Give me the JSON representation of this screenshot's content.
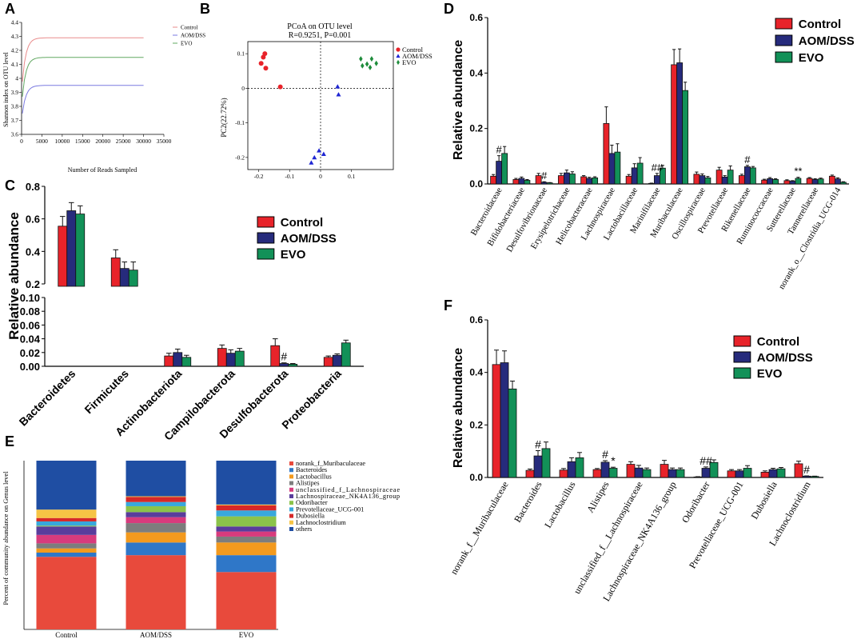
{
  "colors": {
    "control": "#e8232a",
    "aom": "#262b7c",
    "evo": "#129158",
    "bar_edge": "#111111"
  },
  "chart_data": [
    {
      "panel": "A",
      "type": "line",
      "title": "",
      "xlabel": "Number of Reads Sampled",
      "ylabel": "Shannon index on OTU level",
      "xlim": [
        0,
        35000
      ],
      "ylim": [
        3.6,
        4.4
      ],
      "x_ticks": [
        "0",
        "5000",
        "10000",
        "15000",
        "20000",
        "25000",
        "30000",
        "35000"
      ],
      "y_ticks": [
        "3.6",
        "3.7",
        "3.8",
        "3.9",
        "4",
        "4.1",
        "4.2",
        "4.3",
        "4.4"
      ],
      "legend": [
        "Control",
        "AOM/DSS",
        "EVO"
      ],
      "series": [
        {
          "name": "Control",
          "color": "#e98b8b",
          "plateau": 4.29,
          "start": 3.9
        },
        {
          "name": "AOM/DSS",
          "color": "#7a7ae0",
          "plateau": 3.95,
          "start": 3.7
        },
        {
          "name": "EVO",
          "color": "#62a862",
          "plateau": 4.15,
          "start": 3.8
        }
      ]
    },
    {
      "panel": "B",
      "type": "scatter",
      "title": "PCoA on OTU level",
      "subtitle": "R=0.9251, P=0.001",
      "xlabel": "",
      "ylabel": "PC2(22.72%)",
      "xlim": [
        -0.235,
        0.235
      ],
      "ylim": [
        -0.235,
        0.135
      ],
      "x_ticks": [
        -0.2,
        -0.1,
        0,
        0.1
      ],
      "x_tick_labels": [
        "-0.2",
        "-0.1",
        "0",
        "0.1"
      ],
      "y_ticks": [
        0.1,
        0,
        -0.1,
        -0.2
      ],
      "y_tick_labels": [
        "0.1",
        "0",
        "-0.1",
        "-0.2"
      ],
      "legend": [
        "Control",
        "AOM/DSS",
        "EVO"
      ],
      "series": [
        {
          "name": "Control",
          "marker": "circle",
          "color": "#e8232a",
          "points": [
            [
              -0.18,
              0.1
            ],
            [
              -0.185,
              0.09
            ],
            [
              -0.192,
              0.072
            ],
            [
              -0.177,
              0.058
            ],
            [
              -0.13,
              0.004
            ]
          ]
        },
        {
          "name": "AOM/DSS",
          "marker": "triangle",
          "color": "#1f26d3",
          "points": [
            [
              0.055,
              0.005
            ],
            [
              0.058,
              -0.018
            ],
            [
              -0.005,
              -0.18
            ],
            [
              0.01,
              -0.19
            ],
            [
              -0.02,
              -0.2
            ],
            [
              -0.03,
              -0.215
            ]
          ]
        },
        {
          "name": "EVO",
          "marker": "diamond",
          "color": "#1e8c3b",
          "points": [
            [
              0.13,
              0.085
            ],
            [
              0.15,
              0.07
            ],
            [
              0.165,
              0.085
            ],
            [
              0.18,
              0.072
            ],
            [
              0.135,
              0.065
            ],
            [
              0.16,
              0.06
            ]
          ]
        }
      ]
    },
    {
      "panel": "C",
      "type": "bar",
      "xlabel": "",
      "ylabel": "Relative abundance",
      "broken_axis": true,
      "upper_ylim": [
        0.2,
        0.8
      ],
      "upper_ticks": [
        "0.8",
        "0.6",
        "0.4",
        "0.2"
      ],
      "lower_ylim": [
        0,
        0.1
      ],
      "lower_ticks": [
        "0.10",
        "0.08",
        "0.06",
        "0.04",
        "0.02",
        "0.00"
      ],
      "categories": [
        "Bacteroidetes",
        "Firmicutes",
        "Actinobacteriota",
        "Campilobacterota",
        "Desulfobacterota",
        "Proteobacteria"
      ],
      "series": [
        {
          "name": "Control",
          "values": [
            0.555,
            0.36,
            0.015,
            0.026,
            0.03,
            0.013
          ],
          "errors": [
            0.06,
            0.05,
            0.004,
            0.005,
            0.01,
            0.002
          ]
        },
        {
          "name": "AOM/DSS",
          "values": [
            0.65,
            0.295,
            0.02,
            0.019,
            0.004,
            0.016
          ],
          "errors": [
            0.05,
            0.04,
            0.005,
            0.005,
            0.001,
            0.002
          ]
        },
        {
          "name": "EVO",
          "values": [
            0.63,
            0.285,
            0.013,
            0.022,
            0.003,
            0.034
          ],
          "errors": [
            0.05,
            0.05,
            0.003,
            0.004,
            0.001,
            0.004
          ]
        }
      ],
      "annotations": [
        {
          "category": 4,
          "series": 1,
          "text": "#"
        }
      ],
      "legend": [
        "Control",
        "AOM/DSS",
        "EVO"
      ]
    },
    {
      "panel": "D",
      "type": "bar",
      "xlabel": "",
      "ylabel": "Relative abundance",
      "ylim": [
        0,
        0.6
      ],
      "y_ticks": [
        "0.0",
        "0.2",
        "0.4",
        "0.6"
      ],
      "categories": [
        "Bacteroidaceae",
        "Bifidobacteriaceae",
        "Desulfovibrionaceae",
        "Erysipelotrichaceae",
        "Helicobacteraceae",
        "Lachnospiraceae",
        "Lactobacillaceae",
        "Marinifilaceae",
        "Muribaculaceae",
        "Oscillospiraceae",
        "Prevotellaceae",
        "Rikenellaceae",
        "Ruminococcaceae",
        "Sutterellaceae",
        "Tannerellaceae",
        "norank_o__Clostridia_UCG-014"
      ],
      "series": [
        {
          "name": "Control",
          "values": [
            0.028,
            0.016,
            0.03,
            0.03,
            0.026,
            0.218,
            0.028,
            0.002,
            0.43,
            0.035,
            0.05,
            0.03,
            0.014,
            0.012,
            0.02,
            0.028
          ],
          "errors": [
            0.006,
            0.004,
            0.008,
            0.008,
            0.004,
            0.06,
            0.006,
            0.001,
            0.055,
            0.008,
            0.01,
            0.005,
            0.003,
            0.003,
            0.003,
            0.004
          ]
        },
        {
          "name": "AOM/DSS",
          "values": [
            0.082,
            0.02,
            0.006,
            0.04,
            0.02,
            0.11,
            0.058,
            0.03,
            0.437,
            0.03,
            0.025,
            0.062,
            0.019,
            0.01,
            0.016,
            0.018
          ],
          "errors": [
            0.02,
            0.005,
            0.002,
            0.01,
            0.004,
            0.03,
            0.015,
            0.008,
            0.05,
            0.006,
            0.005,
            0.005,
            0.004,
            0.002,
            0.003,
            0.004
          ]
        },
        {
          "name": "EVO",
          "values": [
            0.11,
            0.013,
            0.004,
            0.036,
            0.022,
            0.115,
            0.075,
            0.057,
            0.337,
            0.022,
            0.05,
            0.058,
            0.016,
            0.02,
            0.018,
            0.006
          ],
          "errors": [
            0.025,
            0.003,
            0.001,
            0.008,
            0.004,
            0.03,
            0.02,
            0.01,
            0.03,
            0.005,
            0.015,
            0.005,
            0.003,
            0.004,
            0.003,
            0.002
          ]
        }
      ],
      "annotations": [
        {
          "category": 0,
          "series": 1,
          "text": "#"
        },
        {
          "category": 2,
          "series": 1,
          "text": "#"
        },
        {
          "category": 7,
          "series": 1,
          "text": "##"
        },
        {
          "category": 11,
          "series": 1,
          "text": "#"
        },
        {
          "category": 13,
          "series": 2,
          "text": "**"
        }
      ],
      "legend": [
        "Control",
        "AOM/DSS",
        "EVO"
      ]
    },
    {
      "panel": "E",
      "type": "bar",
      "stacked": true,
      "xlabel": "",
      "ylabel": "Percent of community abundance on Genus level",
      "categories": [
        "Control",
        "AOM/DSS",
        "EVO"
      ],
      "series": [
        {
          "name": "norank_f_Muribaculaceae",
          "color": "#e84a3c",
          "values": [
            0.43,
            0.44,
            0.34
          ]
        },
        {
          "name": "Bacteroides",
          "color": "#2f77c8",
          "values": [
            0.025,
            0.075,
            0.1
          ]
        },
        {
          "name": "Lactobacillus",
          "color": "#f39a1e",
          "values": [
            0.025,
            0.06,
            0.075
          ]
        },
        {
          "name": "Alistipes",
          "color": "#7d7d7d",
          "values": [
            0.03,
            0.055,
            0.035
          ]
        },
        {
          "name": "unclassified_f_Lachnospiraceae",
          "color": "#d83b7d",
          "values": [
            0.05,
            0.035,
            0.03
          ]
        },
        {
          "name": "Lachnospiraceae_NK4A136_group",
          "color": "#5a3d9c",
          "values": [
            0.05,
            0.03,
            0.03
          ]
        },
        {
          "name": "Odoribacter",
          "color": "#8bc34a",
          "values": [
            0.005,
            0.035,
            0.06
          ]
        },
        {
          "name": "Prevotellaceae_UCG-001",
          "color": "#38a8dc",
          "values": [
            0.025,
            0.025,
            0.035
          ]
        },
        {
          "name": "Dubosiella",
          "color": "#d62828",
          "values": [
            0.02,
            0.03,
            0.03
          ]
        },
        {
          "name": "Lachnoclostridium",
          "color": "#f6c445",
          "values": [
            0.05,
            0.004,
            0.005
          ]
        },
        {
          "name": "others",
          "color": "#1f4ea3",
          "values": [
            0.29,
            0.211,
            0.26
          ]
        }
      ],
      "y_ticks": []
    },
    {
      "panel": "F",
      "type": "bar",
      "xlabel": "",
      "ylabel": "Relative abundance",
      "ylim": [
        0,
        0.6
      ],
      "y_ticks": [
        "0.0",
        "0.2",
        "0.4",
        "0.6"
      ],
      "categories": [
        "norank_f__Muribaculaceae",
        "Bacteroides",
        "Lactobacillus",
        "Alistipes",
        "unclassified_f__Lachnospiraceae",
        "Lachnospiraceae_NK4A136_group",
        "Odoribacter",
        "Prevotellaceae_UCG-001",
        "Dubosiella",
        "Lachnoclostridium"
      ],
      "series": [
        {
          "name": "Control",
          "values": [
            0.43,
            0.027,
            0.028,
            0.03,
            0.05,
            0.05,
            0.002,
            0.025,
            0.02,
            0.052
          ],
          "errors": [
            0.055,
            0.005,
            0.006,
            0.004,
            0.01,
            0.015,
            0.001,
            0.005,
            0.005,
            0.01
          ]
        },
        {
          "name": "AOM/DSS",
          "values": [
            0.437,
            0.082,
            0.06,
            0.058,
            0.036,
            0.03,
            0.035,
            0.025,
            0.03,
            0.005
          ],
          "errors": [
            0.045,
            0.02,
            0.015,
            0.006,
            0.01,
            0.006,
            0.005,
            0.005,
            0.005,
            0.001
          ]
        },
        {
          "name": "EVO",
          "values": [
            0.337,
            0.11,
            0.075,
            0.035,
            0.03,
            0.03,
            0.057,
            0.035,
            0.033,
            0.004
          ],
          "errors": [
            0.03,
            0.025,
            0.02,
            0.004,
            0.006,
            0.006,
            0.01,
            0.01,
            0.005,
            0.001
          ]
        }
      ],
      "annotations": [
        {
          "category": 1,
          "series": 1,
          "text": "#"
        },
        {
          "category": 3,
          "series": 1,
          "text": "#"
        },
        {
          "category": 3,
          "series": 2,
          "text": "*"
        },
        {
          "category": 6,
          "series": 1,
          "text": "##"
        },
        {
          "category": 9,
          "series": 1,
          "text": "#"
        }
      ],
      "legend": [
        "Control",
        "AOM/DSS",
        "EVO"
      ]
    }
  ]
}
